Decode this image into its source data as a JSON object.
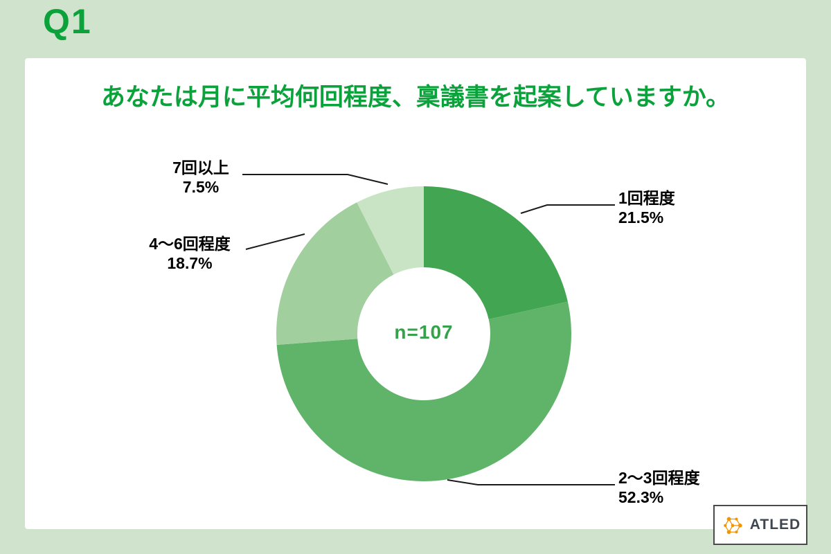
{
  "page": {
    "q_label": "Q1"
  },
  "brand": {
    "name": "ATLED"
  },
  "colors": {
    "frame_green": "#cfe3cd",
    "card_white": "#ffffff",
    "accent_green": "#0ba23c",
    "center_label_green": "#35a24b",
    "label_text": "#000000",
    "leader_line": "#1a1a1a",
    "brand_orange": "#f0940c",
    "brand_text": "#3f4650"
  },
  "chart_data": {
    "type": "pie",
    "donut": true,
    "title": "あなたは月に平均何回程度、稟議書を起案していますか。",
    "center_label": "n=107",
    "n": 107,
    "start_angle_deg": 0,
    "direction": "clockwise",
    "inner_radius_ratio": 0.45,
    "legend_position": "labels-with-leader-lines",
    "slices": [
      {
        "label": "1回程度",
        "value": 21.5,
        "pct_label": "21.5%",
        "color": "#41a551"
      },
      {
        "label": "2〜3回程度",
        "value": 52.3,
        "pct_label": "52.3%",
        "color": "#60b46a"
      },
      {
        "label": "4〜6回程度",
        "value": 18.7,
        "pct_label": "18.7%",
        "color": "#a2cf9e"
      },
      {
        "label": "7回以上",
        "value": 7.5,
        "pct_label": "7.5%",
        "color": "#c9e4c4"
      }
    ]
  }
}
